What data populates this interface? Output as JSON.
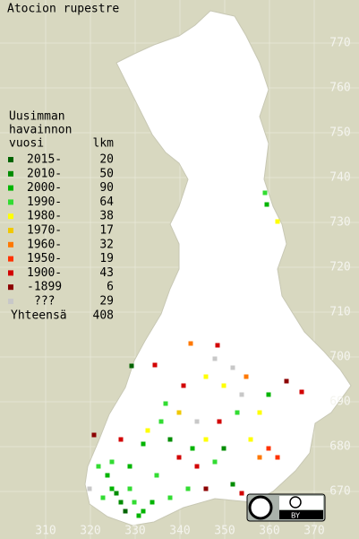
{
  "chart_data": {
    "type": "map",
    "title": "Atocion rupestre",
    "legend_title": [
      "Uusimman",
      "havainnon",
      "vuosi"
    ],
    "count_header": "lkm",
    "xlim": [
      299.8,
      380
    ],
    "ylim": [
      659.4,
      779.6
    ],
    "xticks": [
      310,
      320,
      330,
      340,
      350,
      360,
      370
    ],
    "yticks": [
      670,
      680,
      690,
      700,
      710,
      720,
      730,
      740,
      750,
      760,
      770
    ],
    "classes": [
      {
        "name": "2015-",
        "count": 20,
        "color": "#006400"
      },
      {
        "name": "2010-",
        "count": 50,
        "color": "#008c00"
      },
      {
        "name": "2000-",
        "count": 90,
        "color": "#00b400"
      },
      {
        "name": "1990-",
        "count": 64,
        "color": "#32dc32"
      },
      {
        "name": "1980-",
        "count": 38,
        "color": "#ffff00"
      },
      {
        "name": "1970-",
        "count": 17,
        "color": "#f0c800"
      },
      {
        "name": "1960-",
        "count": 32,
        "color": "#ff7800"
      },
      {
        "name": "1950-",
        "count": 19,
        "color": "#ff3200"
      },
      {
        "name": "1900-",
        "count": 43,
        "color": "#d20000"
      },
      {
        "name": "-1899",
        "count": 6,
        "color": "#8c0000"
      },
      {
        "name": "???",
        "count": 29,
        "color": "#c8c8c8"
      }
    ],
    "total_label": "Yhteensä",
    "total": 408,
    "observations": [
      {
        "x": 359.0,
        "y": 736.6,
        "class": 3
      },
      {
        "x": 359.4,
        "y": 734.0,
        "class": 2
      },
      {
        "x": 361.8,
        "y": 730.2,
        "class": 4
      },
      {
        "x": 334.4,
        "y": 698.2,
        "class": 8
      },
      {
        "x": 329.2,
        "y": 698.0,
        "class": 0
      },
      {
        "x": 342.4,
        "y": 703.0,
        "class": 6
      },
      {
        "x": 348.4,
        "y": 702.6,
        "class": 8
      },
      {
        "x": 347.8,
        "y": 699.6,
        "class": 10
      },
      {
        "x": 345.8,
        "y": 695.6,
        "class": 4
      },
      {
        "x": 351.8,
        "y": 697.6,
        "class": 10
      },
      {
        "x": 354.8,
        "y": 695.6,
        "class": 6
      },
      {
        "x": 359.8,
        "y": 691.6,
        "class": 2
      },
      {
        "x": 363.8,
        "y": 694.6,
        "class": 9
      },
      {
        "x": 367.2,
        "y": 692.2,
        "class": 8
      },
      {
        "x": 357.8,
        "y": 687.6,
        "class": 4
      },
      {
        "x": 352.8,
        "y": 687.6,
        "class": 3
      },
      {
        "x": 348.8,
        "y": 685.6,
        "class": 8
      },
      {
        "x": 343.8,
        "y": 685.6,
        "class": 10
      },
      {
        "x": 339.8,
        "y": 687.6,
        "class": 5
      },
      {
        "x": 335.8,
        "y": 685.6,
        "class": 3
      },
      {
        "x": 332.8,
        "y": 683.6,
        "class": 4
      },
      {
        "x": 337.8,
        "y": 681.6,
        "class": 1
      },
      {
        "x": 331.8,
        "y": 680.6,
        "class": 2
      },
      {
        "x": 326.8,
        "y": 681.6,
        "class": 8
      },
      {
        "x": 320.8,
        "y": 682.6,
        "class": 9
      },
      {
        "x": 321.8,
        "y": 675.6,
        "class": 3
      },
      {
        "x": 323.8,
        "y": 673.6,
        "class": 2
      },
      {
        "x": 325.8,
        "y": 669.6,
        "class": 1
      },
      {
        "x": 329.8,
        "y": 667.6,
        "class": 3
      },
      {
        "x": 333.8,
        "y": 667.6,
        "class": 2
      },
      {
        "x": 337.8,
        "y": 668.6,
        "class": 3
      },
      {
        "x": 327.8,
        "y": 665.6,
        "class": 0
      },
      {
        "x": 331.8,
        "y": 665.6,
        "class": 2
      },
      {
        "x": 343.8,
        "y": 675.6,
        "class": 8
      },
      {
        "x": 347.8,
        "y": 676.6,
        "class": 3
      },
      {
        "x": 351.8,
        "y": 671.6,
        "class": 1
      },
      {
        "x": 353.8,
        "y": 669.6,
        "class": 8
      },
      {
        "x": 357.8,
        "y": 677.6,
        "class": 6
      },
      {
        "x": 355.8,
        "y": 681.6,
        "class": 4
      },
      {
        "x": 359.8,
        "y": 679.6,
        "class": 7
      },
      {
        "x": 341.8,
        "y": 670.6,
        "class": 3
      },
      {
        "x": 345.8,
        "y": 670.6,
        "class": 9
      },
      {
        "x": 322.8,
        "y": 668.6,
        "class": 3
      },
      {
        "x": 324.8,
        "y": 670.6,
        "class": 2
      },
      {
        "x": 328.8,
        "y": 670.6,
        "class": 3
      },
      {
        "x": 326.8,
        "y": 667.6,
        "class": 1
      },
      {
        "x": 330.8,
        "y": 664.6,
        "class": 2
      },
      {
        "x": 319.8,
        "y": 670.6,
        "class": 10
      },
      {
        "x": 349.8,
        "y": 693.6,
        "class": 4
      },
      {
        "x": 353.8,
        "y": 691.6,
        "class": 10
      },
      {
        "x": 340.8,
        "y": 693.6,
        "class": 8
      },
      {
        "x": 336.8,
        "y": 689.6,
        "class": 3
      },
      {
        "x": 342.8,
        "y": 679.6,
        "class": 2
      },
      {
        "x": 339.8,
        "y": 677.6,
        "class": 8
      },
      {
        "x": 345.8,
        "y": 681.6,
        "class": 4
      },
      {
        "x": 361.8,
        "y": 677.6,
        "class": 7
      },
      {
        "x": 324.8,
        "y": 676.6,
        "class": 3
      },
      {
        "x": 328.8,
        "y": 675.6,
        "class": 2
      },
      {
        "x": 334.8,
        "y": 673.6,
        "class": 3
      },
      {
        "x": 349.8,
        "y": 679.6,
        "class": 1
      }
    ],
    "license": "BY"
  }
}
